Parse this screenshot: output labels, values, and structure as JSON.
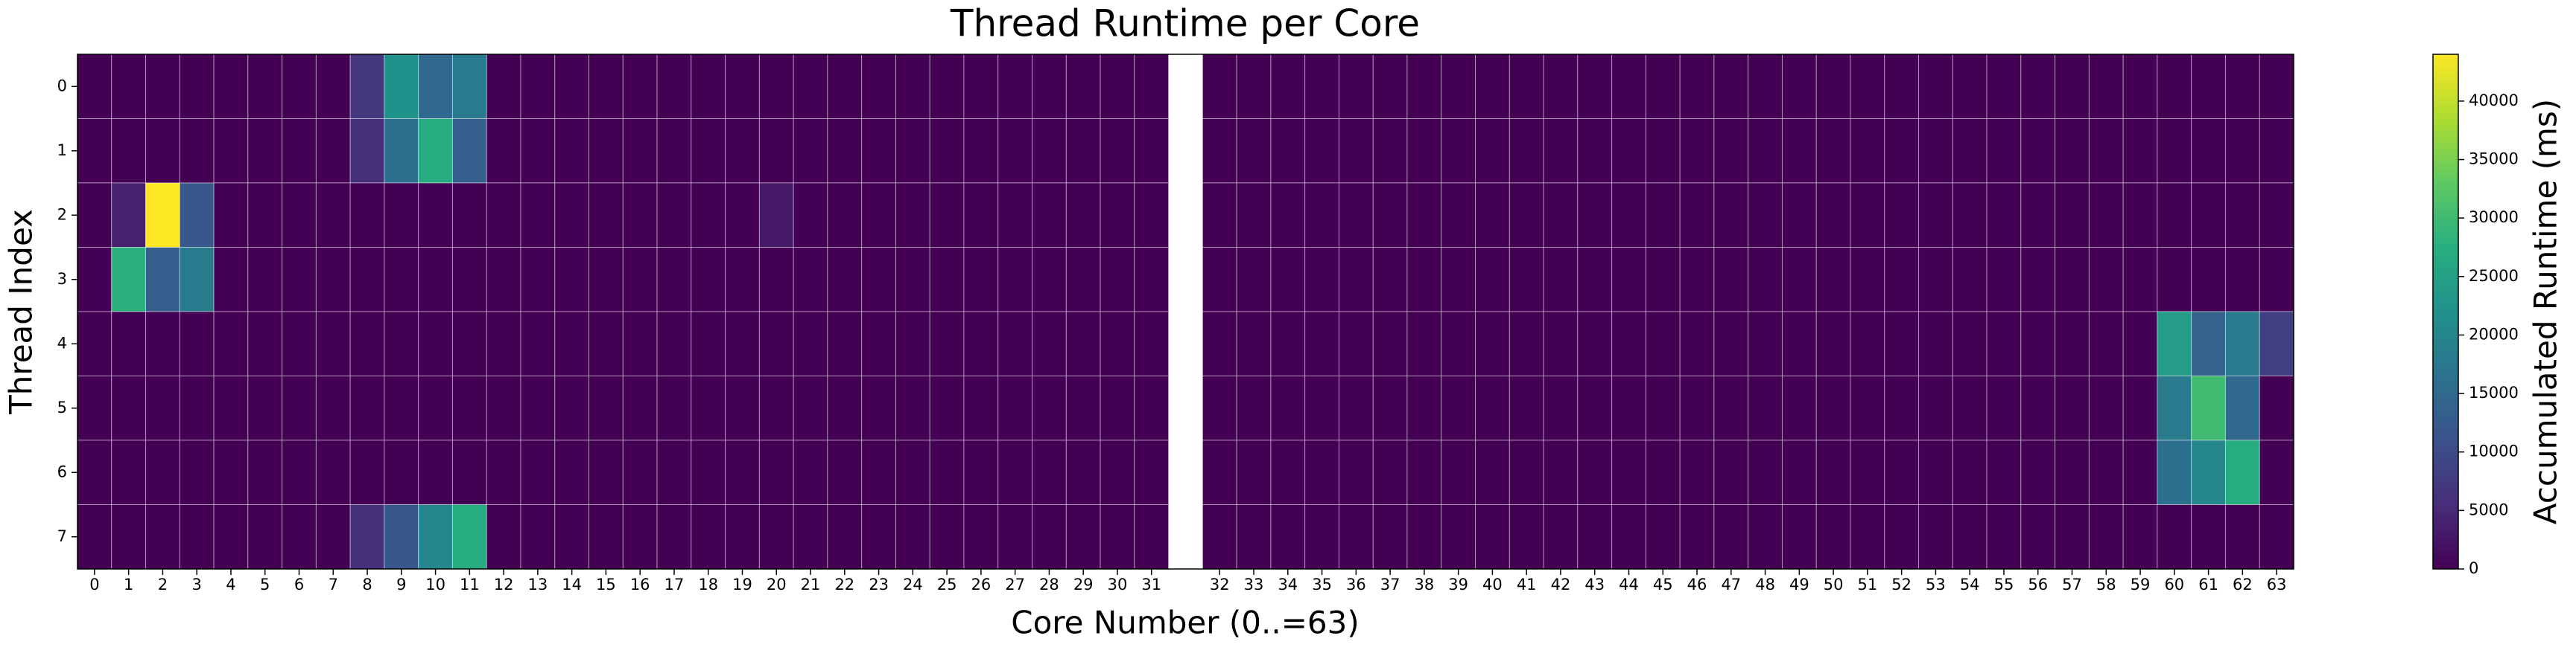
{
  "chart_data": {
    "type": "heatmap",
    "title": "Thread Runtime per Core",
    "xlabel": "Core Number (0..=63)",
    "ylabel": "Thread Index",
    "colorbar_label": "Accumulated Runtime (ms)",
    "colormap": "viridis",
    "grid": true,
    "categories": [
      0,
      1,
      2,
      3,
      4,
      5,
      6,
      7,
      8,
      9,
      10,
      11,
      12,
      13,
      14,
      15,
      16,
      17,
      18,
      19,
      20,
      21,
      22,
      23,
      24,
      25,
      26,
      27,
      28,
      29,
      30,
      31,
      null,
      32,
      33,
      34,
      35,
      36,
      37,
      38,
      39,
      40,
      41,
      42,
      43,
      44,
      45,
      46,
      47,
      48,
      49,
      50,
      51,
      52,
      53,
      54,
      55,
      56,
      57,
      58,
      59,
      60,
      61,
      62,
      63
    ],
    "rows": [
      0,
      1,
      2,
      3,
      4,
      5,
      6,
      7
    ],
    "values": [
      [
        0,
        0,
        0,
        0,
        0,
        0,
        0,
        0,
        7000,
        22000,
        15000,
        18000,
        0,
        0,
        0,
        0,
        0,
        0,
        0,
        0,
        0,
        0,
        0,
        0,
        0,
        0,
        0,
        0,
        0,
        0,
        0,
        0,
        null,
        0,
        0,
        0,
        0,
        0,
        0,
        0,
        0,
        0,
        0,
        0,
        0,
        0,
        0,
        0,
        0,
        0,
        0,
        0,
        0,
        0,
        0,
        0,
        0,
        0,
        0,
        0,
        0,
        0,
        0,
        0,
        0
      ],
      [
        0,
        0,
        0,
        0,
        0,
        0,
        0,
        0,
        6000,
        16000,
        27000,
        13000,
        0,
        0,
        0,
        0,
        0,
        0,
        0,
        0,
        0,
        0,
        0,
        0,
        0,
        0,
        0,
        0,
        0,
        0,
        0,
        0,
        null,
        0,
        0,
        0,
        0,
        0,
        0,
        0,
        0,
        0,
        0,
        0,
        0,
        0,
        0,
        0,
        0,
        0,
        0,
        0,
        0,
        0,
        0,
        0,
        0,
        0,
        0,
        0,
        0,
        0,
        0,
        0,
        0
      ],
      [
        0,
        4000,
        44000,
        12000,
        0,
        0,
        0,
        0,
        0,
        0,
        0,
        0,
        0,
        0,
        0,
        0,
        0,
        0,
        0,
        0,
        3000,
        0,
        0,
        0,
        0,
        0,
        0,
        0,
        0,
        0,
        0,
        0,
        null,
        0,
        0,
        0,
        0,
        0,
        0,
        0,
        0,
        0,
        0,
        0,
        0,
        0,
        0,
        0,
        0,
        0,
        0,
        0,
        0,
        0,
        0,
        0,
        0,
        0,
        0,
        0,
        0,
        0,
        0,
        0,
        0
      ],
      [
        0,
        28000,
        13000,
        18000,
        0,
        0,
        0,
        0,
        0,
        0,
        0,
        0,
        0,
        0,
        0,
        0,
        0,
        0,
        0,
        0,
        0,
        0,
        0,
        0,
        0,
        0,
        0,
        0,
        0,
        0,
        0,
        0,
        null,
        0,
        0,
        0,
        0,
        0,
        0,
        0,
        0,
        0,
        0,
        0,
        0,
        0,
        0,
        0,
        0,
        0,
        0,
        0,
        0,
        0,
        0,
        0,
        0,
        0,
        0,
        0,
        0,
        0,
        0,
        0,
        0
      ],
      [
        0,
        0,
        0,
        0,
        0,
        0,
        0,
        0,
        0,
        0,
        0,
        0,
        0,
        0,
        0,
        0,
        0,
        0,
        0,
        0,
        0,
        0,
        0,
        0,
        0,
        0,
        0,
        0,
        0,
        0,
        0,
        0,
        null,
        0,
        0,
        0,
        0,
        0,
        0,
        0,
        0,
        0,
        0,
        0,
        0,
        0,
        0,
        0,
        0,
        0,
        0,
        0,
        0,
        0,
        0,
        0,
        0,
        0,
        0,
        0,
        0,
        24000,
        14000,
        18000,
        8000
      ],
      [
        0,
        0,
        0,
        0,
        0,
        0,
        0,
        0,
        0,
        0,
        0,
        0,
        0,
        0,
        0,
        0,
        0,
        0,
        0,
        0,
        0,
        0,
        0,
        0,
        0,
        0,
        0,
        0,
        0,
        0,
        0,
        0,
        null,
        0,
        0,
        0,
        0,
        0,
        0,
        0,
        0,
        0,
        0,
        0,
        0,
        0,
        0,
        0,
        0,
        0,
        0,
        0,
        0,
        0,
        0,
        0,
        0,
        0,
        0,
        0,
        0,
        18000,
        30000,
        15000,
        0
      ],
      [
        0,
        0,
        0,
        0,
        0,
        0,
        0,
        0,
        0,
        0,
        0,
        0,
        0,
        0,
        0,
        0,
        0,
        0,
        0,
        0,
        0,
        0,
        0,
        0,
        0,
        0,
        0,
        0,
        0,
        0,
        0,
        0,
        null,
        0,
        0,
        0,
        0,
        0,
        0,
        0,
        0,
        0,
        0,
        0,
        0,
        0,
        0,
        0,
        0,
        0,
        0,
        0,
        0,
        0,
        0,
        0,
        0,
        0,
        0,
        0,
        0,
        16000,
        20000,
        27000,
        0
      ],
      [
        0,
        0,
        0,
        0,
        0,
        0,
        0,
        0,
        6000,
        12000,
        20000,
        27000,
        0,
        0,
        0,
        0,
        0,
        0,
        0,
        0,
        0,
        0,
        0,
        0,
        0,
        0,
        0,
        0,
        0,
        0,
        0,
        0,
        null,
        0,
        0,
        0,
        0,
        0,
        0,
        0,
        0,
        0,
        0,
        0,
        0,
        0,
        0,
        0,
        0,
        0,
        0,
        0,
        0,
        0,
        0,
        0,
        0,
        0,
        0,
        0,
        0,
        0,
        0,
        0,
        0
      ]
    ],
    "clim": [
      0,
      44000
    ],
    "cticks": [
      0,
      5000,
      10000,
      15000,
      20000,
      25000,
      30000,
      35000,
      40000
    ]
  }
}
